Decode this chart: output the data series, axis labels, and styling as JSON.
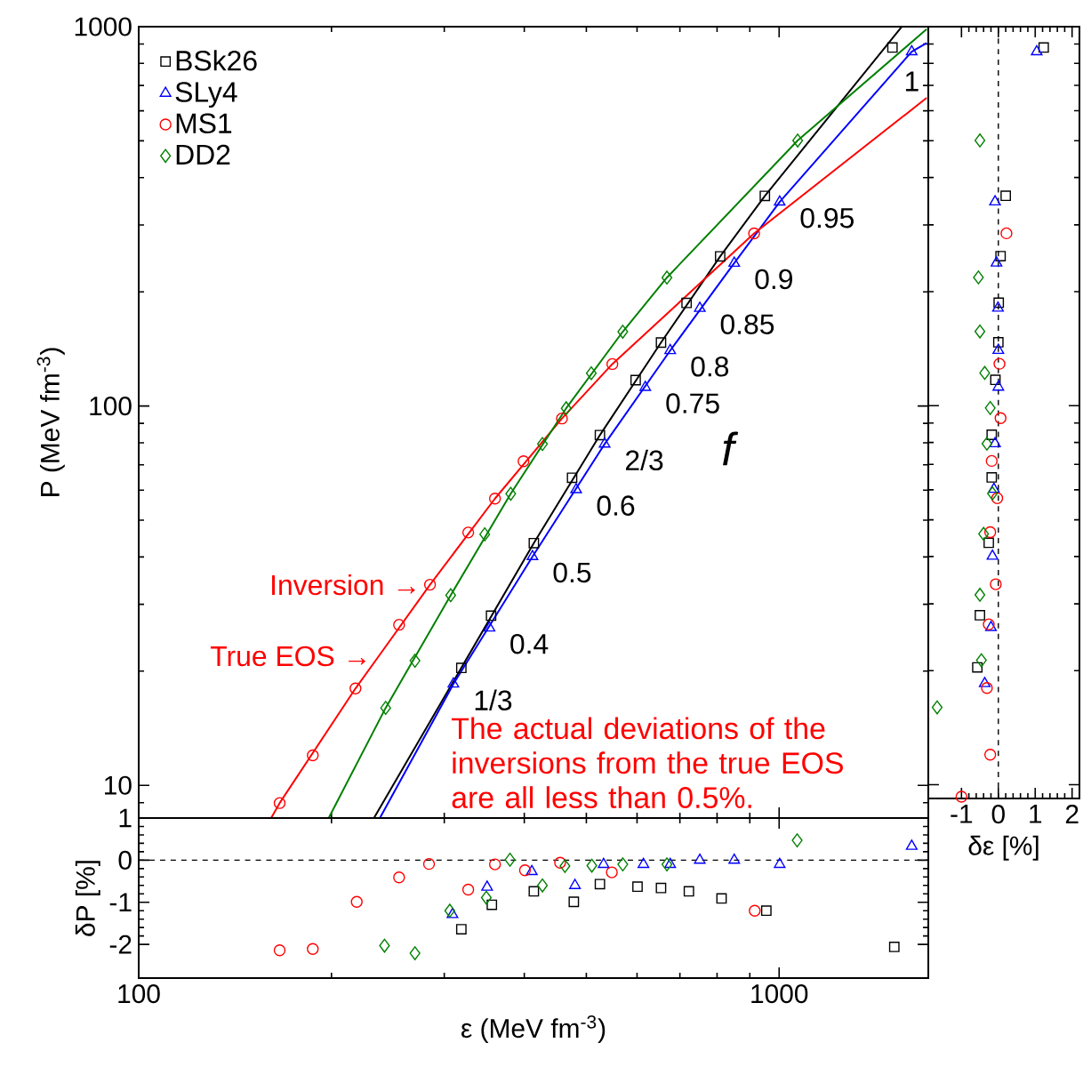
{
  "chart_data": [
    {
      "type": "scatter",
      "ylabel": "P (MeV fm$^{-3}$)",
      "log": "xy",
      "xlim": [
        100,
        1710
      ],
      "ylim": [
        8.2,
        1000
      ],
      "xticks": [
        100,
        1000
      ],
      "yticks": [
        10,
        100,
        1000
      ],
      "tick_labels": "y",
      "legend": "top left",
      "series": [
        {
          "name": "BSk26",
          "color": "#000000",
          "marker": "square",
          "x": [
            319,
            355,
            414,
            475,
            525,
            597,
            654,
            717,
            809,
            950,
            1503
          ],
          "values": [
            20.4,
            28.0,
            43.5,
            64.7,
            83.8,
            117,
            147,
            187,
            248,
            358,
            881
          ]
        },
        {
          "name": "SLy4",
          "color": "#0000ff",
          "marker": "triangle",
          "x": [
            310,
            353,
            412,
            482,
            534,
            618,
            676,
            752,
            851,
            1002,
            1611
          ],
          "values": [
            18.5,
            26.0,
            40.1,
            60.2,
            79.4,
            112,
            140,
            181,
            238,
            345,
            859
          ]
        },
        {
          "name": "MS1",
          "color": "#ff0000",
          "marker": "circle",
          "x": [
            166,
            187,
            218,
            255,
            285,
            327,
            360,
            399,
            458,
            549,
            914
          ],
          "values": [
            8.98,
            12.0,
            18.0,
            26.5,
            33.8,
            46.4,
            57.0,
            71.5,
            92.7,
            129,
            285
          ]
        },
        {
          "name": "DD2",
          "color": "#008000",
          "marker": "diamond",
          "x": [
            243,
            270,
            307,
            347,
            381,
            427,
            465,
            509,
            570,
            668,
            1069
          ],
          "values": [
            16.0,
            21.3,
            31.7,
            45.9,
            58.7,
            79.4,
            98.6,
            122,
            157,
            218,
            501
          ]
        },
        {
          "type": "line",
          "color": "#000000",
          "x": [
            233,
            319,
            414,
            525,
            654,
            809,
            950,
            1555
          ],
          "values": [
            8.2,
            20.4,
            43.5,
            83.8,
            147,
            248,
            358,
            1000
          ]
        },
        {
          "type": "line",
          "color": "#0000ff",
          "x": [
            238,
            310,
            412,
            534,
            676,
            851,
            1002,
            1611,
            1700
          ],
          "values": [
            8.2,
            18.5,
            40.1,
            79.4,
            140,
            238,
            345,
            859,
            905
          ]
        },
        {
          "type": "line",
          "color": "#ff0000",
          "x": [
            161,
            166,
            218,
            237,
            285,
            360,
            458,
            549,
            914,
            1700
          ],
          "values": [
            8.2,
            8.98,
            18.0,
            21.9,
            33.8,
            57.0,
            92.7,
            129,
            285,
            649
          ]
        },
        {
          "type": "line",
          "color": "#008000",
          "x": [
            198,
            243,
            307,
            381,
            465,
            570,
            668,
            1069,
            1700
          ],
          "values": [
            8.2,
            16.0,
            31.7,
            58.7,
            98.6,
            157,
            218,
            501,
            985
          ]
        }
      ],
      "annotations": [
        {
          "text": "1/3",
          "x": 310,
          "y": 18.5
        },
        {
          "text": "0.4",
          "x": 353,
          "y": 26.0
        },
        {
          "text": "0.5",
          "x": 412,
          "y": 40.1
        },
        {
          "text": "0.6",
          "x": 482,
          "y": 60.2
        },
        {
          "text": "2/3",
          "x": 534,
          "y": 79.4
        },
        {
          "text": "0.75",
          "x": 618,
          "y": 112
        },
        {
          "text": "0.8",
          "x": 676,
          "y": 140
        },
        {
          "text": "0.85",
          "x": 752,
          "y": 181
        },
        {
          "text": "0.9",
          "x": 851,
          "y": 238
        },
        {
          "text": "0.95",
          "x": 1002,
          "y": 345
        },
        {
          "text": "1",
          "x": 1611,
          "y": 859
        },
        "f",
        {
          "text": "Inversion →",
          "x": 285,
          "y": 33.8
        },
        {
          "text": "True EOS →",
          "x": 237,
          "y": 21.9
        },
        "The actual deviations of the inversions from the true EOS are all less than 0.5%."
      ]
    },
    {
      "type": "scatter",
      "xlabel": "ε (MeV fm$^{-3}$)",
      "ylabel": "δP [%]",
      "log": "x",
      "xlim": [
        100,
        1710
      ],
      "ylim": [
        -2.8,
        1
      ],
      "xticks": [
        100,
        1000
      ],
      "yticks": [
        -2,
        -1,
        0,
        1
      ],
      "ref_lines": [
        {
          "axis": "y",
          "value": 0,
          "color": "#000000",
          "line_style": "dashed"
        }
      ],
      "series": [
        {
          "color": "#000000",
          "marker": "square",
          "x": [
            319,
            356,
            414,
            478,
            525,
            601,
            654,
            723,
            813,
            955,
            1513
          ],
          "values": [
            -1.64,
            -1.06,
            -0.74,
            -0.99,
            -0.57,
            -0.63,
            -0.66,
            -0.74,
            -0.91,
            -1.2,
            -2.06
          ]
        },
        {
          "color": "#0000ff",
          "marker": "triangle",
          "x": [
            309,
            350,
            411,
            480,
            532,
            614,
            676,
            752,
            851,
            1002,
            1611
          ],
          "values": [
            -1.29,
            -0.64,
            -0.27,
            -0.6,
            -0.1,
            -0.1,
            -0.1,
            0.0,
            0.0,
            -0.1,
            0.33
          ]
        },
        {
          "color": "#ff0000",
          "marker": "circle",
          "x": [
            166,
            187,
            219,
            255,
            284,
            327,
            360,
            401,
            455,
            548,
            916
          ],
          "values": [
            -2.14,
            -2.11,
            -0.99,
            -0.41,
            -0.09,
            -0.7,
            -0.1,
            -0.24,
            -0.06,
            -0.29,
            -1.2
          ]
        },
        {
          "color": "#008000",
          "marker": "diamond",
          "x": [
            242,
            270,
            306,
            349,
            380,
            427,
            463,
            510,
            570,
            668,
            1067
          ],
          "values": [
            -2.03,
            -2.21,
            -1.2,
            -0.89,
            0.01,
            -0.6,
            -0.14,
            -0.13,
            -0.1,
            -0.1,
            0.47
          ]
        }
      ]
    },
    {
      "type": "scatter",
      "xlabel": "δε [%]",
      "log": "y",
      "xlim": [
        -1.9,
        2.2
      ],
      "ylim": [
        9.2,
        1000
      ],
      "xticks": [
        -1,
        0,
        1,
        2
      ],
      "yticks": [
        10,
        100,
        1000
      ],
      "tick_labels": "x",
      "ref_lines": [
        {
          "axis": "x",
          "value": 0,
          "color": "#000000",
          "line_style": "dashed"
        }
      ],
      "series": [
        {
          "color": "#000000",
          "marker": "square",
          "x": [
            -0.57,
            -0.5,
            -0.26,
            -0.18,
            -0.18,
            -0.08,
            0.0,
            0.01,
            0.06,
            0.2,
            1.23
          ],
          "values": [
            20.4,
            28.0,
            43.5,
            64.7,
            83.8,
            117,
            147,
            187,
            248,
            358,
            881
          ]
        },
        {
          "color": "#0000ff",
          "marker": "triangle",
          "x": [
            -0.37,
            -0.2,
            -0.16,
            -0.12,
            -0.09,
            0.0,
            0.0,
            -0.01,
            -0.05,
            -0.09,
            1.04
          ],
          "values": [
            18.5,
            26.0,
            40.1,
            60.2,
            79.4,
            112,
            140,
            181,
            238,
            345,
            859
          ]
        },
        {
          "color": "#ff0000",
          "marker": "circle",
          "x": [
            -1.0,
            -0.22,
            -0.31,
            -0.26,
            -0.07,
            -0.22,
            -0.03,
            -0.18,
            0.06,
            0.03,
            0.22
          ],
          "values": [
            9.3,
            12.0,
            18.0,
            26.5,
            33.8,
            46.4,
            57.0,
            71.5,
            92.7,
            129,
            285
          ]
        },
        {
          "color": "#008000",
          "marker": "diamond",
          "x": [
            -1.66,
            -0.46,
            -0.5,
            -0.4,
            -0.16,
            -0.31,
            -0.22,
            -0.37,
            -0.5,
            -0.54,
            -0.5
          ],
          "values": [
            16.0,
            21.3,
            31.7,
            45.9,
            58.7,
            79.4,
            98.6,
            122,
            157,
            218,
            501
          ]
        }
      ]
    }
  ]
}
